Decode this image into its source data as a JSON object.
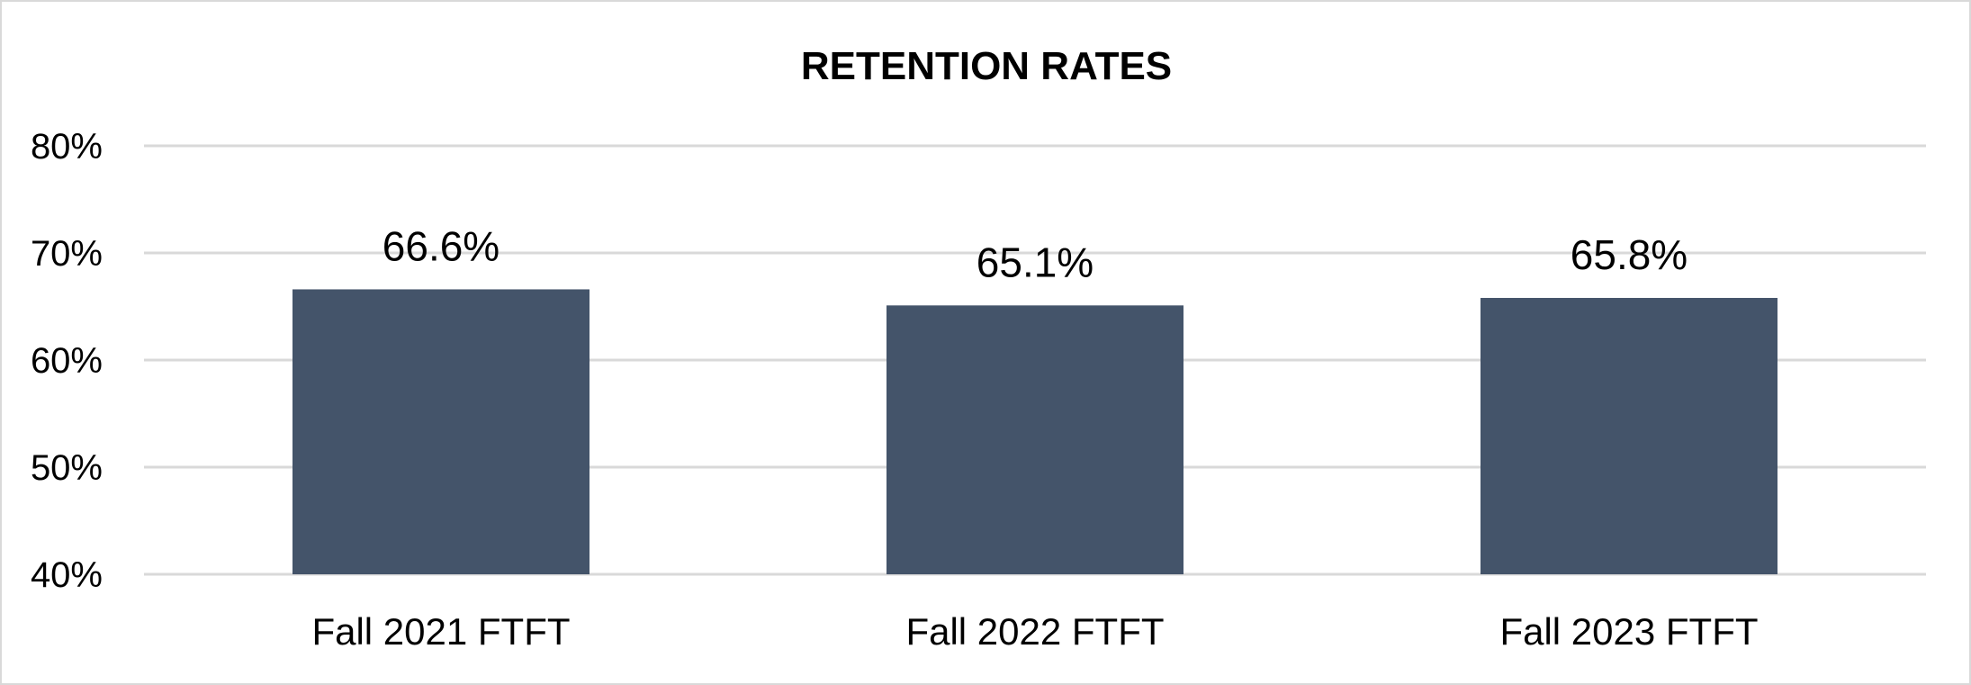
{
  "chart_data": {
    "type": "bar",
    "title": "RETENTION RATES",
    "xlabel": "",
    "ylabel": "",
    "categories": [
      "Fall 2021 FTFT",
      "Fall 2022 FTFT",
      "Fall 2023 FTFT"
    ],
    "values": [
      66.6,
      65.1,
      65.8
    ],
    "data_labels": [
      "66.6%",
      "65.1%",
      "65.8%"
    ],
    "ylim": [
      40,
      80
    ],
    "yticks": [
      40,
      50,
      60,
      70,
      80
    ],
    "ytick_labels": [
      "40%",
      "50%",
      "60%",
      "70%",
      "80%"
    ],
    "grid": true,
    "legend": "none",
    "bar_color": "#44546a",
    "grid_color": "#d9d9d9"
  }
}
